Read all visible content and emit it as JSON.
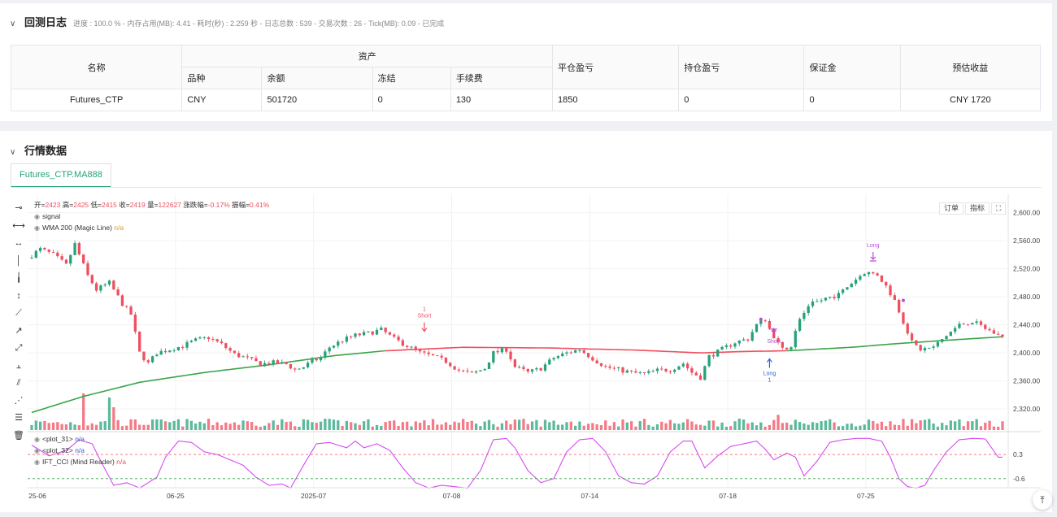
{
  "backtest": {
    "title": "回测日志",
    "stats": "进度 : 100.0 % - 内存占用(MB): 4.41 - 耗时(秒) : 2.259 秒 - 日志总数 : 539 - 交易次数 : 26 - Tick(MB): 0.09 - 已完成"
  },
  "table": {
    "h_name": "名称",
    "h_asset": "资产",
    "h_close_pnl": "平仓盈亏",
    "h_pos_pnl": "持仓盈亏",
    "h_margin": "保证金",
    "h_est": "预估收益",
    "sub": [
      "品种",
      "余额",
      "冻结",
      "手续费"
    ],
    "row": {
      "name": "Futures_CTP",
      "symbol": "CNY",
      "balance": "501720",
      "frozen": "0",
      "fee": "130",
      "close_pnl": "1850",
      "pos_pnl": "0",
      "margin": "0",
      "est": "CNY 1720"
    }
  },
  "market": {
    "title": "行情数据",
    "tab": "Futures_CTP.MA888"
  },
  "toolbar_buttons": {
    "order": "订单",
    "indicator": "指标"
  },
  "legend": {
    "ohlc": {
      "open_label": "开=",
      "open": "2423",
      "high_label": "高=",
      "high": "2425",
      "low_label": "低=",
      "low": "2415",
      "close_label": "收=",
      "close": "2419",
      "vol_label": "量=",
      "vol": "122627",
      "chg_label": "涨跌幅=",
      "chg": "-0.17%",
      "amp_label": "振幅=",
      "amp": "0.41%"
    },
    "signal": "signal",
    "wma": "WMA 200 (Magic Line)",
    "na": "n/a",
    "plot31": "<plot_31>",
    "plot32": "<plot_32>",
    "ift": "IFT_CCI (Mind Reader)"
  },
  "colors": {
    "up": "#26a17b",
    "down": "#ef4f5f",
    "wma_green": "#3aa54a",
    "wma_red": "#ef4f5f",
    "osc": "#d44cf0",
    "signal_long": "#2e5fd8",
    "signal_short": "#ef4f5f"
  },
  "chart_data": {
    "type": "candlestick",
    "y_ticks": [
      "2,600.00",
      "2,560.00",
      "2,520.00",
      "2,480.00",
      "2,440.00",
      "2,400.00",
      "2,360.00",
      "2,320.00"
    ],
    "ylim": [
      2290,
      2610
    ],
    "x_ticks": [
      "25-06",
      "06-25",
      "2025-07",
      "07-08",
      "07-14",
      "07-18",
      "07-25"
    ],
    "osc_ticks": [
      "0.3",
      "-0.6"
    ],
    "osc_levels": [
      0.3,
      -0.6
    ],
    "signals": [
      {
        "label": "Short",
        "count": "1",
        "type": "short",
        "price": 2425
      },
      {
        "label": "Long",
        "count": "1",
        "type": "long",
        "price": 2395
      },
      {
        "label": "Short",
        "count": "",
        "type": "short_purple",
        "price": 2420
      },
      {
        "label": "Long",
        "count": "",
        "type": "long_purple",
        "price": 2530
      }
    ],
    "anchors": [
      [
        0,
        2535
      ],
      [
        3,
        2548
      ],
      [
        6,
        2540
      ],
      [
        9,
        2525
      ],
      [
        11,
        2555
      ],
      [
        14,
        2510
      ],
      [
        16,
        2490
      ],
      [
        19,
        2500
      ],
      [
        22,
        2470
      ],
      [
        24,
        2455
      ],
      [
        26,
        2400
      ],
      [
        28,
        2385
      ],
      [
        30,
        2400
      ],
      [
        33,
        2405
      ],
      [
        36,
        2410
      ],
      [
        39,
        2418
      ],
      [
        42,
        2422
      ],
      [
        45,
        2412
      ],
      [
        48,
        2398
      ],
      [
        51,
        2392
      ],
      [
        54,
        2384
      ],
      [
        57,
        2386
      ],
      [
        60,
        2384
      ],
      [
        62,
        2376
      ],
      [
        64,
        2380
      ],
      [
        66,
        2388
      ],
      [
        68,
        2393
      ],
      [
        70,
        2408
      ],
      [
        73,
        2418
      ],
      [
        76,
        2425
      ],
      [
        79,
        2428
      ],
      [
        82,
        2433
      ],
      [
        85,
        2420
      ],
      [
        88,
        2410
      ],
      [
        91,
        2400
      ],
      [
        94,
        2395
      ],
      [
        97,
        2388
      ],
      [
        100,
        2375
      ],
      [
        103,
        2370
      ],
      [
        106,
        2378
      ],
      [
        108,
        2400
      ],
      [
        111,
        2405
      ],
      [
        113,
        2380
      ],
      [
        116,
        2372
      ],
      [
        119,
        2378
      ],
      [
        122,
        2393
      ],
      [
        125,
        2400
      ],
      [
        128,
        2405
      ],
      [
        131,
        2392
      ],
      [
        134,
        2380
      ],
      [
        137,
        2376
      ],
      [
        140,
        2372
      ],
      [
        143,
        2370
      ],
      [
        146,
        2375
      ],
      [
        149,
        2376
      ],
      [
        152,
        2385
      ],
      [
        154,
        2372
      ],
      [
        156,
        2365
      ],
      [
        158,
        2395
      ],
      [
        161,
        2405
      ],
      [
        164,
        2415
      ],
      [
        167,
        2420
      ],
      [
        169,
        2440
      ],
      [
        171,
        2448
      ],
      [
        173,
        2420
      ],
      [
        175,
        2405
      ],
      [
        177,
        2410
      ],
      [
        179,
        2450
      ],
      [
        182,
        2470
      ],
      [
        185,
        2478
      ],
      [
        188,
        2483
      ],
      [
        191,
        2500
      ],
      [
        194,
        2515
      ],
      [
        197,
        2512
      ],
      [
        199,
        2495
      ],
      [
        201,
        2475
      ],
      [
        203,
        2445
      ],
      [
        205,
        2415
      ],
      [
        207,
        2405
      ],
      [
        210,
        2408
      ],
      [
        213,
        2425
      ],
      [
        216,
        2440
      ],
      [
        219,
        2445
      ],
      [
        222,
        2435
      ],
      [
        225,
        2425
      ]
    ],
    "wma_anchors": [
      [
        0,
        2315
      ],
      [
        12,
        2338
      ],
      [
        25,
        2358
      ],
      [
        40,
        2372
      ],
      [
        55,
        2383
      ],
      [
        70,
        2396
      ],
      [
        82,
        2403
      ],
      [
        100,
        2408
      ],
      [
        120,
        2407
      ],
      [
        140,
        2404
      ],
      [
        155,
        2400
      ],
      [
        165,
        2402
      ],
      [
        175,
        2403
      ],
      [
        190,
        2408
      ],
      [
        200,
        2413
      ],
      [
        212,
        2418
      ],
      [
        225,
        2423
      ]
    ],
    "osc_anchors": [
      [
        0,
        0.65
      ],
      [
        4,
        0.25
      ],
      [
        8,
        0.45
      ],
      [
        11,
        0.85
      ],
      [
        14,
        0.7
      ],
      [
        16,
        0.05
      ],
      [
        19,
        -0.85
      ],
      [
        22,
        -0.75
      ],
      [
        25,
        -0.95
      ],
      [
        29,
        -0.55
      ],
      [
        31,
        0.2
      ],
      [
        34,
        0.8
      ],
      [
        37,
        0.75
      ],
      [
        40,
        0.4
      ],
      [
        43,
        0.3
      ],
      [
        46,
        0.1
      ],
      [
        49,
        -0.1
      ],
      [
        52,
        -0.55
      ],
      [
        55,
        -0.85
      ],
      [
        58,
        -0.8
      ],
      [
        60,
        -0.95
      ],
      [
        63,
        -0.1
      ],
      [
        66,
        0.7
      ],
      [
        69,
        0.75
      ],
      [
        73,
        0.55
      ],
      [
        75,
        0.8
      ],
      [
        77,
        0.55
      ],
      [
        80,
        0.7
      ],
      [
        83,
        0.45
      ],
      [
        86,
        -0.2
      ],
      [
        89,
        -0.75
      ],
      [
        92,
        -0.95
      ],
      [
        95,
        -0.85
      ],
      [
        98,
        -0.9
      ],
      [
        101,
        -0.95
      ],
      [
        104,
        -0.3
      ],
      [
        107,
        0.85
      ],
      [
        110,
        0.9
      ],
      [
        112,
        0.55
      ],
      [
        115,
        -0.3
      ],
      [
        118,
        -0.75
      ],
      [
        121,
        -0.6
      ],
      [
        124,
        0.4
      ],
      [
        127,
        0.85
      ],
      [
        130,
        0.9
      ],
      [
        133,
        0.4
      ],
      [
        136,
        -0.5
      ],
      [
        139,
        -0.75
      ],
      [
        142,
        -0.8
      ],
      [
        145,
        -0.5
      ],
      [
        148,
        0.4
      ],
      [
        151,
        0.8
      ],
      [
        153,
        0.8
      ],
      [
        156,
        -0.2
      ],
      [
        159,
        0.25
      ],
      [
        162,
        0.6
      ],
      [
        165,
        0.7
      ],
      [
        168,
        0.8
      ],
      [
        170,
        0.5
      ],
      [
        172,
        0.1
      ],
      [
        175,
        0.35
      ],
      [
        177,
        0.2
      ],
      [
        179,
        -0.5
      ],
      [
        182,
        0.05
      ],
      [
        185,
        0.75
      ],
      [
        188,
        0.85
      ],
      [
        191,
        0.9
      ],
      [
        194,
        0.9
      ],
      [
        197,
        0.8
      ],
      [
        199,
        0.2
      ],
      [
        201,
        -0.6
      ],
      [
        203,
        -0.9
      ],
      [
        205,
        -0.95
      ],
      [
        207,
        -0.85
      ],
      [
        209,
        -0.3
      ],
      [
        212,
        0.4
      ],
      [
        215,
        0.85
      ],
      [
        218,
        0.9
      ],
      [
        221,
        0.88
      ],
      [
        224,
        0.2
      ]
    ]
  }
}
